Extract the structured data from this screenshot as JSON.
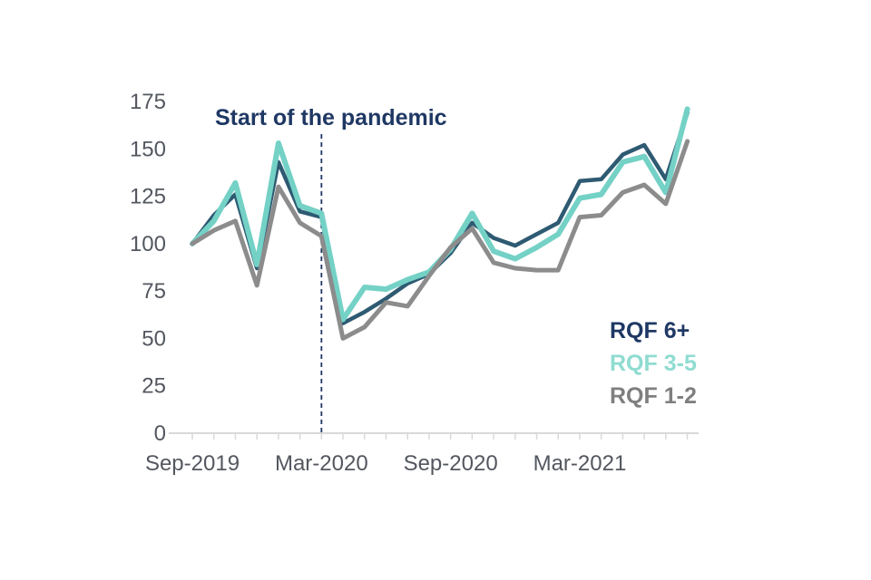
{
  "page": {
    "background": "#ffffff"
  },
  "annotation": {
    "text": "Start of the pandemic",
    "color": "#1f3864"
  },
  "chart_data": {
    "type": "line",
    "x": [
      "Sep-2019",
      "Oct-2019",
      "Nov-2019",
      "Dec-2019",
      "Jan-2020",
      "Feb-2020",
      "Mar-2020",
      "Apr-2020",
      "May-2020",
      "Jun-2020",
      "Jul-2020",
      "Aug-2020",
      "Sep-2020",
      "Oct-2020",
      "Nov-2020",
      "Dec-2020",
      "Jan-2021",
      "Feb-2021",
      "Mar-2021",
      "Apr-2021",
      "May-2021",
      "Jun-2021",
      "Jul-2021",
      "Aug-2021"
    ],
    "x_tick_labels": [
      "Sep-2019",
      "Mar-2020",
      "Sep-2020",
      "Mar-2021"
    ],
    "x_tick_month_index": [
      0,
      6,
      12,
      18
    ],
    "y_ticks": [
      0,
      25,
      50,
      75,
      100,
      125,
      150,
      175
    ],
    "ylim": [
      0,
      175
    ],
    "grid": false,
    "legend_position": "inside-right",
    "vline": {
      "label": "Start of the pandemic",
      "at": "Mar-2020",
      "month_index": 6,
      "color": "#1f3864",
      "style": "dashed"
    },
    "series": [
      {
        "name": "RQF 6+",
        "color": "#2e5a72",
        "label_color": "#1f3864",
        "stroke_width": 4.5,
        "values": [
          100,
          115,
          126,
          87,
          143,
          117,
          114,
          58,
          64,
          71,
          79,
          84,
          95,
          111,
          103,
          99,
          105,
          111,
          133,
          134,
          147,
          152,
          134,
          169
        ]
      },
      {
        "name": "RQF 3-5",
        "color": "#74d1c6",
        "label_color": "#8fdcd1",
        "stroke_width": 6,
        "values": [
          100,
          112,
          132,
          89,
          153,
          120,
          116,
          60,
          77,
          76,
          81,
          85,
          97,
          116,
          96,
          92,
          98,
          105,
          124,
          126,
          143,
          146,
          127,
          171
        ]
      },
      {
        "name": "RQF 1-2",
        "color": "#8c8c8c",
        "label_color": "#7f7f7f",
        "stroke_width": 5,
        "values": [
          100,
          107,
          112,
          78,
          130,
          111,
          104,
          50,
          56,
          69,
          67,
          83,
          98,
          108,
          90,
          87,
          86,
          86,
          114,
          115,
          127,
          131,
          121,
          154
        ]
      }
    ],
    "axis_color": "#d9d9d9",
    "tick_label_color": "#53575f"
  }
}
